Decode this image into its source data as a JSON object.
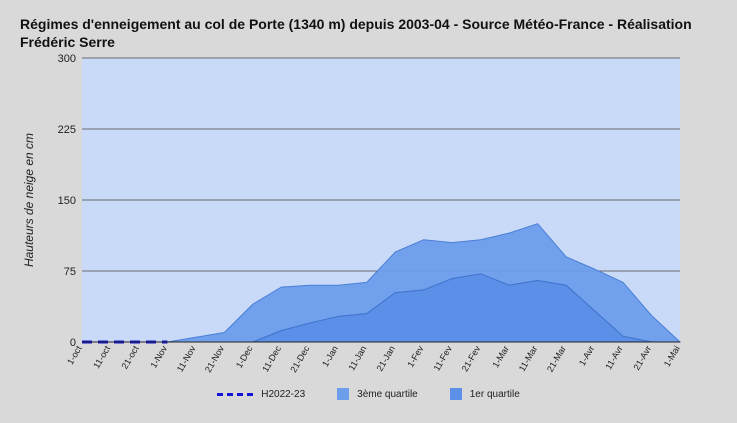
{
  "chart_data": {
    "type": "area",
    "title": "Régimes d'enneigement au col de Porte (1340 m) depuis 2003-04 - Source Météo-France - Réalisation Frédéric Serre",
    "xlabel": "",
    "ylabel": "Hauteurs de neige en cm",
    "ylim": [
      0,
      300
    ],
    "yticks": [
      "0",
      "75",
      "150",
      "225",
      "300"
    ],
    "categories": [
      "1-oct",
      "11-oct",
      "21-oct",
      "1-Nov",
      "11-Nov",
      "21-Nov",
      "1-Dec",
      "11-Dec",
      "21-Dec",
      "1-Jan",
      "11-Jan",
      "21-Jan",
      "1-Fev",
      "11-Fev",
      "21-Fev",
      "1-Mar",
      "11-Mar",
      "21-Mar",
      "1-Avr",
      "11-Avr",
      "21-Avr",
      "1-Mai"
    ],
    "series": [
      {
        "name": "H2022-23",
        "kind": "dashed-line",
        "color": "#1515d6",
        "values": [
          0,
          0,
          0,
          0,
          null,
          null,
          null,
          null,
          null,
          null,
          null,
          null,
          null,
          null,
          null,
          null,
          null,
          null,
          null,
          null,
          null,
          null
        ]
      },
      {
        "name": "3ème quartile",
        "kind": "area",
        "color": "#6d9eeb",
        "values": [
          0,
          0,
          0,
          0,
          5,
          10,
          40,
          58,
          60,
          60,
          63,
          95,
          108,
          105,
          108,
          115,
          125,
          90,
          77,
          63,
          28,
          0
        ]
      },
      {
        "name": "1er quartile",
        "kind": "area",
        "color": "#5b8fe8",
        "values": [
          0,
          0,
          0,
          0,
          0,
          0,
          0,
          12,
          20,
          27,
          30,
          52,
          55,
          67,
          72,
          60,
          65,
          60,
          33,
          6,
          0,
          0
        ]
      }
    ],
    "grid": true,
    "legend_position": "bottom",
    "plot_background": "#c9daf8"
  }
}
